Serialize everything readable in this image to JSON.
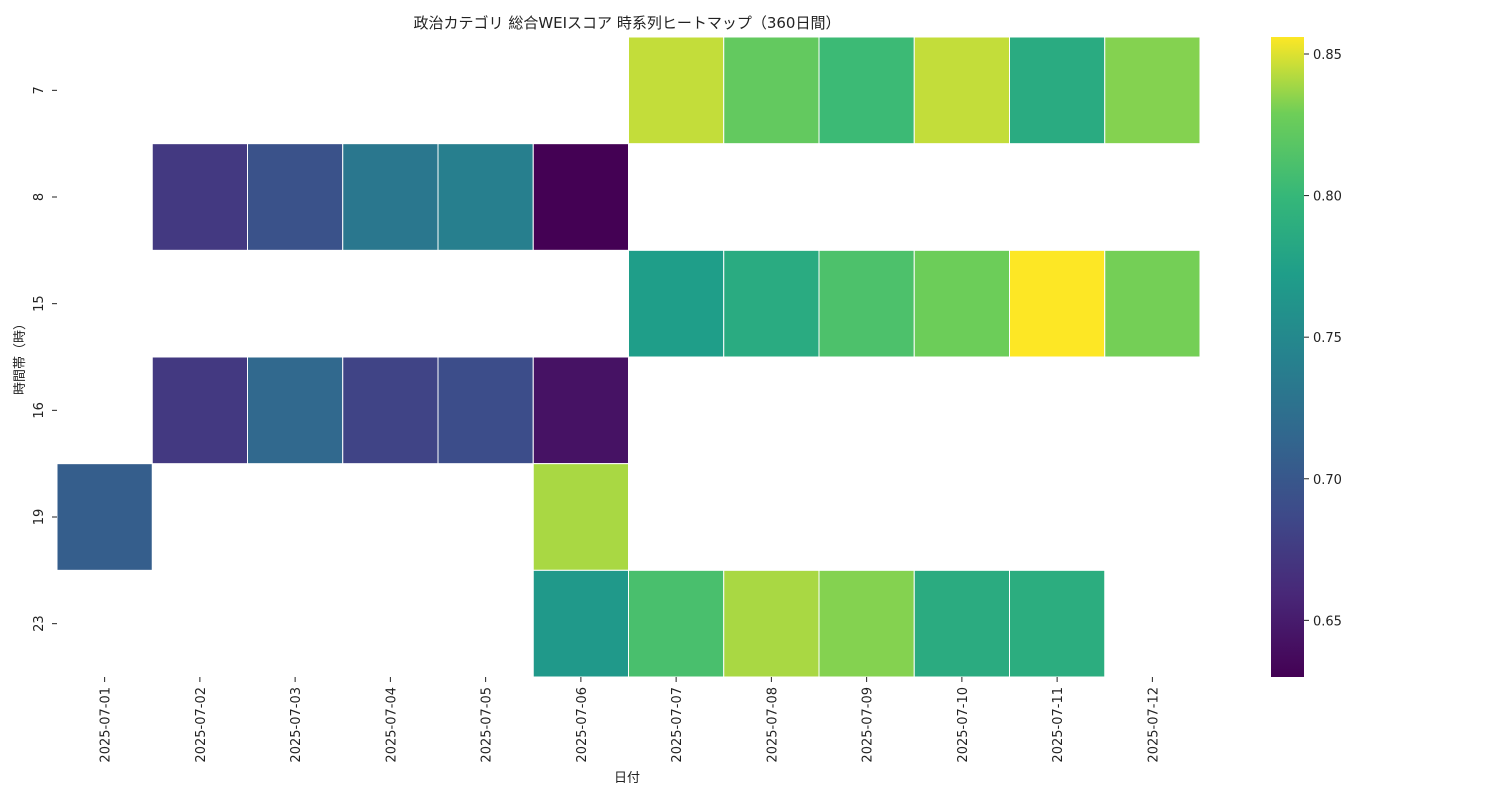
{
  "chart_data": {
    "type": "heatmap",
    "title": "政治カテゴリ 総合WEIスコア 時系列ヒートマップ（360日間）",
    "xlabel": "日付",
    "ylabel": "時間帯（時）",
    "x": [
      "2025-07-01",
      "2025-07-02",
      "2025-07-03",
      "2025-07-04",
      "2025-07-05",
      "2025-07-06",
      "2025-07-07",
      "2025-07-08",
      "2025-07-09",
      "2025-07-10",
      "2025-07-11",
      "2025-07-12"
    ],
    "y": [
      "7",
      "8",
      "15",
      "16",
      "19",
      "23"
    ],
    "values": [
      [
        null,
        null,
        null,
        null,
        null,
        null,
        0.845,
        0.823,
        0.803,
        0.845,
        0.786,
        0.833
      ],
      [
        null,
        0.673,
        0.695,
        0.732,
        0.74,
        0.63,
        null,
        null,
        null,
        null,
        null,
        null
      ],
      [
        null,
        null,
        null,
        null,
        null,
        null,
        0.772,
        0.786,
        0.812,
        0.828,
        0.856,
        0.83
      ],
      [
        null,
        0.673,
        0.717,
        0.682,
        0.69,
        0.643,
        null,
        null,
        null,
        null,
        null,
        null
      ],
      [
        0.706,
        null,
        null,
        null,
        null,
        0.84,
        null,
        null,
        null,
        null,
        null,
        null
      ],
      [
        null,
        null,
        null,
        null,
        null,
        0.767,
        0.81,
        0.84,
        0.833,
        0.787,
        0.789,
        null
      ]
    ],
    "colorbar": {
      "cmap": "viridis",
      "range": [
        0.63,
        0.856
      ],
      "ticks": [
        "0.65",
        "0.70",
        "0.75",
        "0.80",
        "0.85"
      ]
    }
  }
}
